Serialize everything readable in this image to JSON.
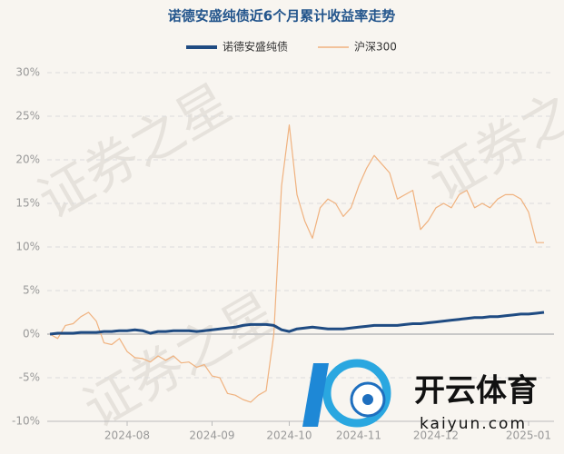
{
  "chart_data": {
    "type": "line",
    "title": "诺德安盛纯债近6个月累计收益率走势",
    "categories": [
      null,
      null,
      null,
      null,
      null,
      null,
      null,
      null,
      null,
      null,
      "2024-08",
      null,
      null,
      null,
      null,
      null,
      null,
      null,
      null,
      null,
      null,
      "2024-09",
      null,
      null,
      null,
      null,
      null,
      null,
      null,
      null,
      null,
      "2024-10",
      null,
      null,
      null,
      null,
      null,
      null,
      null,
      null,
      "2024-11",
      null,
      null,
      null,
      null,
      null,
      null,
      null,
      null,
      null,
      "2024-12",
      null,
      null,
      null,
      null,
      null,
      null,
      null,
      null,
      null,
      null,
      null,
      "2025-01",
      null,
      null
    ],
    "series": [
      {
        "name": "诺德安盛纯债",
        "color": "#1f4b82",
        "values": [
          0,
          0.1,
          0.1,
          0.1,
          0.2,
          0.2,
          0.2,
          0.3,
          0.3,
          0.4,
          0.4,
          0.5,
          0.4,
          0.1,
          0.3,
          0.3,
          0.4,
          0.4,
          0.4,
          0.3,
          0.4,
          0.5,
          0.6,
          0.7,
          0.8,
          1.0,
          1.1,
          1.1,
          1.1,
          1.0,
          0.5,
          0.3,
          0.6,
          0.7,
          0.8,
          0.7,
          0.6,
          0.6,
          0.6,
          0.7,
          0.8,
          0.9,
          1.0,
          1.0,
          1.0,
          1.0,
          1.1,
          1.2,
          1.2,
          1.3,
          1.4,
          1.5,
          1.6,
          1.7,
          1.8,
          1.9,
          1.9,
          2.0,
          2.0,
          2.1,
          2.2,
          2.3,
          2.3,
          2.4,
          2.5
        ]
      },
      {
        "name": "沪深300",
        "color": "#f0b27f",
        "values": [
          0,
          -0.5,
          1,
          1.2,
          2,
          2.5,
          1.5,
          -1,
          -1.2,
          -0.5,
          -2,
          -2.7,
          -2.8,
          -3.2,
          -2.5,
          -3,
          -2.5,
          -3.3,
          -3.2,
          -3.8,
          -3.5,
          -4.8,
          -5,
          -6.8,
          -7,
          -7.5,
          -7.8,
          -7,
          -6.5,
          0,
          17,
          24,
          16,
          13,
          11,
          14.5,
          15.5,
          15,
          13.5,
          14.5,
          17,
          19,
          20.5,
          19.5,
          18.5,
          15.5,
          16,
          16.5,
          12,
          13,
          14.5,
          15,
          14.5,
          16,
          16.5,
          14.5,
          15,
          14.5,
          15.5,
          16,
          16,
          15.5,
          14,
          10.5,
          10.5
        ]
      }
    ],
    "ylim": [
      -10,
      30
    ],
    "yticks": [
      {
        "value": -10,
        "label": "-10%"
      },
      {
        "value": -5,
        "label": "-5%"
      },
      {
        "value": 0,
        "label": "0%"
      },
      {
        "value": 5,
        "label": "5%"
      },
      {
        "value": 10,
        "label": "10%"
      },
      {
        "value": 15,
        "label": "15%"
      },
      {
        "value": 20,
        "label": "20%"
      },
      {
        "value": 25,
        "label": "25%"
      },
      {
        "value": 30,
        "label": "30%"
      }
    ],
    "grid": true,
    "legend": "top",
    "watermark": "证券之星",
    "logo_text": "开云体育",
    "logo_url": "kaiyun.com"
  }
}
